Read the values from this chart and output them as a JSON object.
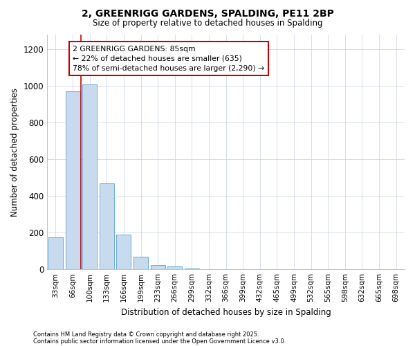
{
  "title_line1": "2, GREENRIGG GARDENS, SPALDING, PE11 2BP",
  "title_line2": "Size of property relative to detached houses in Spalding",
  "xlabel": "Distribution of detached houses by size in Spalding",
  "ylabel": "Number of detached properties",
  "categories": [
    "33sqm",
    "66sqm",
    "100sqm",
    "133sqm",
    "166sqm",
    "199sqm",
    "233sqm",
    "266sqm",
    "299sqm",
    "332sqm",
    "366sqm",
    "399sqm",
    "432sqm",
    "465sqm",
    "499sqm",
    "532sqm",
    "565sqm",
    "598sqm",
    "632sqm",
    "665sqm",
    "698sqm"
  ],
  "values": [
    175,
    970,
    1010,
    470,
    190,
    70,
    22,
    16,
    5,
    2,
    1,
    0,
    0,
    0,
    0,
    0,
    0,
    0,
    0,
    0,
    0
  ],
  "bar_color": "#c8daee",
  "bar_edge_color": "#6aaad4",
  "grid_color": "#d0d8e8",
  "vline_color": "#cc0000",
  "annotation_box_text": "2 GREENRIGG GARDENS: 85sqm\n← 22% of detached houses are smaller (635)\n78% of semi-detached houses are larger (2,290) →",
  "annotation_box_edge_color": "#cc0000",
  "footer_line1": "Contains HM Land Registry data © Crown copyright and database right 2025.",
  "footer_line2": "Contains public sector information licensed under the Open Government Licence v3.0.",
  "ylim": [
    0,
    1280
  ],
  "yticks": [
    0,
    200,
    400,
    600,
    800,
    1000,
    1200
  ],
  "background_color": "#ffffff",
  "plot_bg_color": "#ffffff"
}
